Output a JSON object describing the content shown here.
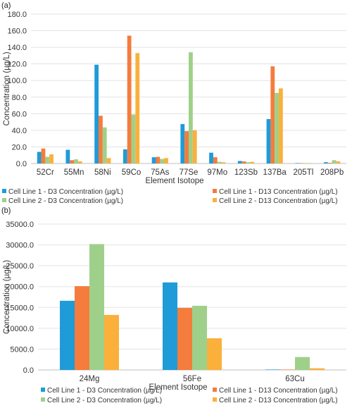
{
  "chart_data": [
    {
      "type": "bar",
      "panel_label": "(a)",
      "categories": [
        "52Cr",
        "55Mn",
        "58Ni",
        "59Co",
        "75As",
        "77Se",
        "97Mo",
        "123Sb",
        "137Ba",
        "205Tl",
        "208Pb"
      ],
      "series": [
        {
          "name": "Cell Line 1 - D3 Concentration (µg/L)",
          "color": "#1f9bd7",
          "values": [
            14.0,
            16.5,
            119.0,
            17.0,
            7.5,
            47.5,
            13.0,
            3.0,
            53.5,
            0.2,
            1.5
          ]
        },
        {
          "name": "Cell Line 1 - D13 Concentration (µg/L)",
          "color": "#f47c3c",
          "values": [
            18.0,
            4.0,
            57.5,
            154.0,
            8.0,
            39.0,
            7.5,
            2.5,
            117.0,
            0.2,
            0.8
          ]
        },
        {
          "name": "Cell Line 2 - D3 Concentration (µg/L)",
          "color": "#9fd08a",
          "values": [
            8.0,
            5.0,
            43.5,
            59.0,
            5.5,
            134.0,
            2.0,
            1.5,
            85.0,
            0.2,
            4.0
          ]
        },
        {
          "name": "Cell Line 2 - D13 Concentration (µg/L)",
          "color": "#fbb03b",
          "values": [
            11.0,
            2.5,
            6.5,
            133.0,
            6.5,
            40.0,
            1.5,
            2.0,
            90.5,
            0.2,
            2.5
          ]
        }
      ],
      "xlabel": "Element Isotope",
      "ylabel": "Concentration (µg/L)",
      "ylim": [
        0,
        180
      ],
      "yticks": [
        "0.0",
        "20.0",
        "40.0",
        "60.0",
        "80.0",
        "100.0",
        "120.0",
        "140.0",
        "160.0",
        "180.0"
      ],
      "grid": true,
      "legend": "bottom"
    },
    {
      "type": "bar",
      "panel_label": "(b)",
      "categories": [
        "24Mg",
        "56Fe",
        "63Cu"
      ],
      "series": [
        {
          "name": "Cell Line 1 - D3 Concentration (µg/L)",
          "color": "#1f9bd7",
          "values": [
            16600,
            21000,
            100
          ]
        },
        {
          "name": "Cell Line 1 - D13 Concentration (µg/L)",
          "color": "#f47c3c",
          "values": [
            20100,
            14900,
            80
          ]
        },
        {
          "name": "Cell Line 2 - D3 Concentration (µg/L)",
          "color": "#9fd08a",
          "values": [
            30200,
            15400,
            3100
          ]
        },
        {
          "name": "Cell Line 2 - D13 Concentration (µg/L)",
          "color": "#fbb03b",
          "values": [
            13200,
            7600,
            400
          ]
        }
      ],
      "xlabel": "Element Isotope",
      "ylabel": "Concentration (µg/L)",
      "ylim": [
        0,
        35000
      ],
      "yticks": [
        "0.0",
        "5000.0",
        "10000.0",
        "15000.0",
        "20000.0",
        "25000.0",
        "30000.0",
        "35000.0"
      ],
      "grid": true,
      "legend": "bottom"
    }
  ]
}
